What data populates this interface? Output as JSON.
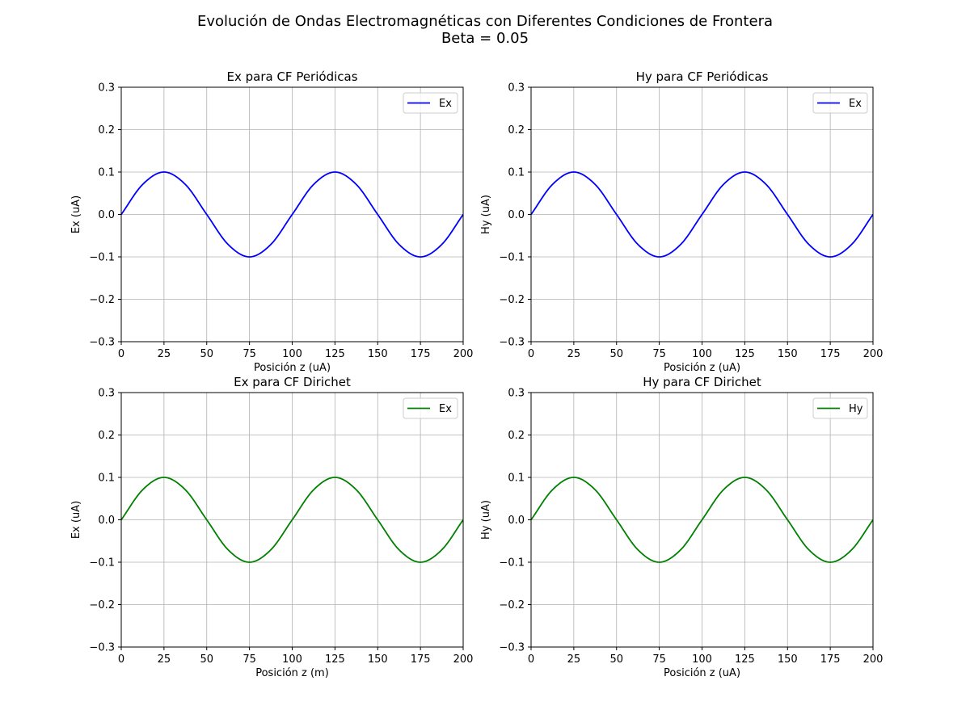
{
  "figure": {
    "title_line1": "Evolución de Ondas Electromagnéticas con Diferentes Condiciones de Frontera",
    "title_line2": "Beta = 0.05"
  },
  "chart_data": [
    {
      "type": "line",
      "title": "Ex para CF Periódicas",
      "xlabel": "Posición z (uA)",
      "ylabel": "Ex (uA)",
      "xlim": [
        0,
        200
      ],
      "ylim": [
        -0.3,
        0.3
      ],
      "xticks": [
        0,
        25,
        50,
        75,
        100,
        125,
        150,
        175,
        200
      ],
      "yticks": [
        -0.3,
        -0.2,
        -0.1,
        0.0,
        0.1,
        0.2,
        0.3
      ],
      "grid": true,
      "legend": "top-right",
      "series": [
        {
          "name": "Ex",
          "color": "#0000ff",
          "x": [
            0,
            12.5,
            25,
            37.5,
            50,
            62.5,
            75,
            87.5,
            100,
            112.5,
            125,
            137.5,
            150,
            162.5,
            175,
            187.5,
            200
          ],
          "y": [
            0.0,
            0.0707,
            0.1,
            0.0707,
            0.0,
            -0.0707,
            -0.1,
            -0.0707,
            0.0,
            0.0707,
            0.1,
            0.0707,
            0.0,
            -0.0707,
            -0.1,
            -0.0707,
            0.0
          ]
        }
      ]
    },
    {
      "type": "line",
      "title": "Hy para CF Periódicas",
      "xlabel": "Posición z (uA)",
      "ylabel": "Hy (uA)",
      "xlim": [
        0,
        200
      ],
      "ylim": [
        -0.3,
        0.3
      ],
      "xticks": [
        0,
        25,
        50,
        75,
        100,
        125,
        150,
        175,
        200
      ],
      "yticks": [
        -0.3,
        -0.2,
        -0.1,
        0.0,
        0.1,
        0.2,
        0.3
      ],
      "grid": true,
      "legend": "top-right",
      "series": [
        {
          "name": "Ex",
          "color": "#0000ff",
          "x": [
            0,
            12.5,
            25,
            37.5,
            50,
            62.5,
            75,
            87.5,
            100,
            112.5,
            125,
            137.5,
            150,
            162.5,
            175,
            187.5,
            200
          ],
          "y": [
            0.0,
            0.0707,
            0.1,
            0.0707,
            0.0,
            -0.0707,
            -0.1,
            -0.0707,
            0.0,
            0.0707,
            0.1,
            0.0707,
            0.0,
            -0.0707,
            -0.1,
            -0.0707,
            0.0
          ]
        }
      ]
    },
    {
      "type": "line",
      "title": "Ex para CF Dirichet",
      "xlabel": "Posición z (m)",
      "ylabel": "Ex (uA)",
      "xlim": [
        0,
        200
      ],
      "ylim": [
        -0.3,
        0.3
      ],
      "xticks": [
        0,
        25,
        50,
        75,
        100,
        125,
        150,
        175,
        200
      ],
      "yticks": [
        -0.3,
        -0.2,
        -0.1,
        0.0,
        0.1,
        0.2,
        0.3
      ],
      "grid": true,
      "legend": "top-right",
      "series": [
        {
          "name": "Ex",
          "color": "#008000",
          "x": [
            0,
            12.5,
            25,
            37.5,
            50,
            62.5,
            75,
            87.5,
            100,
            112.5,
            125,
            137.5,
            150,
            162.5,
            175,
            187.5,
            200
          ],
          "y": [
            0.0,
            0.0707,
            0.1,
            0.0707,
            0.0,
            -0.0707,
            -0.1,
            -0.0707,
            0.0,
            0.0707,
            0.1,
            0.0707,
            0.0,
            -0.0707,
            -0.1,
            -0.0707,
            0.0
          ]
        }
      ]
    },
    {
      "type": "line",
      "title": "Hy para CF Dirichet",
      "xlabel": "Posición z (uA)",
      "ylabel": "Hy (uA)",
      "xlim": [
        0,
        200
      ],
      "ylim": [
        -0.3,
        0.3
      ],
      "xticks": [
        0,
        25,
        50,
        75,
        100,
        125,
        150,
        175,
        200
      ],
      "yticks": [
        -0.3,
        -0.2,
        -0.1,
        0.0,
        0.1,
        0.2,
        0.3
      ],
      "grid": true,
      "legend": "top-right",
      "series": [
        {
          "name": "Hy",
          "color": "#008000",
          "x": [
            0,
            12.5,
            25,
            37.5,
            50,
            62.5,
            75,
            87.5,
            100,
            112.5,
            125,
            137.5,
            150,
            162.5,
            175,
            187.5,
            200
          ],
          "y": [
            0.0,
            0.0707,
            0.1,
            0.0707,
            0.0,
            -0.0707,
            -0.1,
            -0.0707,
            0.0,
            0.0707,
            0.1,
            0.0707,
            0.0,
            -0.0707,
            -0.1,
            -0.0707,
            0.0
          ]
        }
      ]
    }
  ]
}
